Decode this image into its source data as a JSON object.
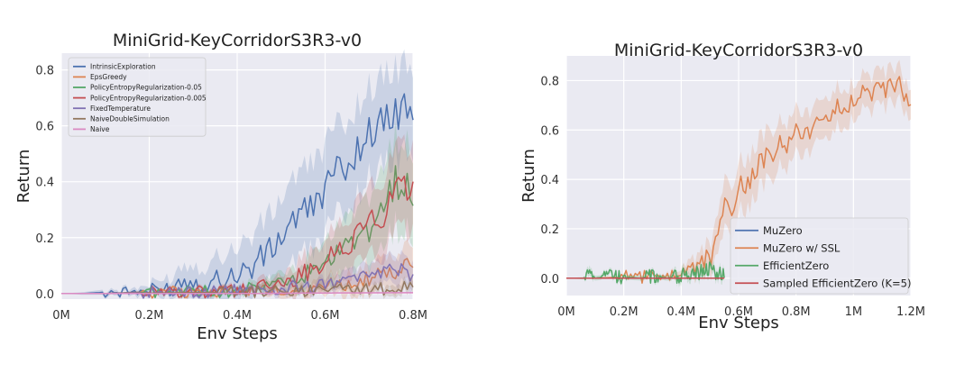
{
  "chart_data": [
    {
      "type": "line",
      "title": "MiniGrid-KeyCorridorS3R3-v0",
      "xlabel": "Env Steps",
      "ylabel": "Return",
      "xlim": [
        0,
        800000
      ],
      "ylim": [
        -0.02,
        0.86
      ],
      "xticks": [
        0,
        200000,
        400000,
        600000,
        800000
      ],
      "xtick_labels": [
        "0M",
        "0.2M",
        "0.4M",
        "0.6M",
        "0.8M"
      ],
      "yticks": [
        0.0,
        0.2,
        0.4,
        0.6,
        0.8
      ],
      "ytick_labels": [
        "0.0",
        "0.2",
        "0.4",
        "0.6",
        "0.8"
      ],
      "grid": true,
      "legend_position": "top-left",
      "series": [
        {
          "name": "IntrinsicExploration",
          "color": "#4c72b0",
          "x": [
            0,
            50000,
            100000,
            150000,
            200000,
            250000,
            280000,
            300000,
            330000,
            350000,
            380000,
            400000,
            430000,
            450000,
            480000,
            500000,
            520000,
            550000,
            580000,
            600000,
            620000,
            650000,
            680000,
            700000,
            720000,
            740000,
            760000,
            780000,
            800000
          ],
          "y": [
            0,
            0,
            0.005,
            0.005,
            0.01,
            0.02,
            0.05,
            0.04,
            0.03,
            0.05,
            0.06,
            0.07,
            0.09,
            0.12,
            0.16,
            0.2,
            0.26,
            0.28,
            0.33,
            0.38,
            0.42,
            0.47,
            0.52,
            0.58,
            0.6,
            0.62,
            0.64,
            0.66,
            0.67
          ],
          "band": [
            0,
            0.005,
            0.01,
            0.01,
            0.02,
            0.04,
            0.06,
            0.06,
            0.07,
            0.08,
            0.09,
            0.1,
            0.11,
            0.12,
            0.13,
            0.14,
            0.15,
            0.15,
            0.16,
            0.16,
            0.16,
            0.16,
            0.16,
            0.16,
            0.16,
            0.16,
            0.16,
            0.16,
            0.15
          ]
        },
        {
          "name": "EpsGreedy",
          "color": "#dd8452",
          "x": [
            0,
            100000,
            200000,
            300000,
            400000,
            500000,
            550000,
            600000,
            650000,
            700000,
            750000,
            800000
          ],
          "y": [
            0,
            0,
            0.005,
            0.005,
            0.01,
            0.01,
            0.02,
            0.03,
            0.04,
            0.05,
            0.07,
            0.1
          ],
          "band": [
            0,
            0.003,
            0.005,
            0.008,
            0.01,
            0.015,
            0.02,
            0.03,
            0.04,
            0.05,
            0.06,
            0.07
          ]
        },
        {
          "name": "PolicyEntropyRegularization-0.05",
          "color": "#55a868",
          "x": [
            0,
            100000,
            200000,
            300000,
            400000,
            450000,
            500000,
            550000,
            600000,
            650000,
            700000,
            730000,
            760000,
            780000,
            800000
          ],
          "y": [
            0,
            0,
            0.005,
            0.005,
            0.01,
            0.02,
            0.04,
            0.06,
            0.1,
            0.16,
            0.22,
            0.3,
            0.4,
            0.38,
            0.36
          ],
          "band": [
            0,
            0.002,
            0.005,
            0.008,
            0.01,
            0.02,
            0.03,
            0.05,
            0.08,
            0.1,
            0.12,
            0.14,
            0.16,
            0.16,
            0.15
          ]
        },
        {
          "name": "PolicyEntropyRegularization-0.005",
          "color": "#c44e52",
          "x": [
            0,
            100000,
            200000,
            300000,
            400000,
            450000,
            500000,
            550000,
            600000,
            650000,
            700000,
            740000,
            770000,
            800000
          ],
          "y": [
            0,
            0,
            0.005,
            0.005,
            0.01,
            0.02,
            0.04,
            0.07,
            0.12,
            0.18,
            0.24,
            0.3,
            0.37,
            0.35
          ],
          "band": [
            0,
            0.002,
            0.005,
            0.008,
            0.01,
            0.02,
            0.03,
            0.06,
            0.08,
            0.1,
            0.12,
            0.14,
            0.15,
            0.15
          ]
        },
        {
          "name": "FixedTemperature",
          "color": "#8172b3",
          "x": [
            0,
            100000,
            200000,
            300000,
            400000,
            500000,
            600000,
            650000,
            700000,
            750000,
            800000
          ],
          "y": [
            0,
            0,
            0.005,
            0.005,
            0.01,
            0.02,
            0.03,
            0.04,
            0.06,
            0.08,
            0.07
          ],
          "band": [
            0,
            0.002,
            0.004,
            0.006,
            0.01,
            0.015,
            0.02,
            0.03,
            0.04,
            0.05,
            0.05
          ]
        },
        {
          "name": "NaiveDoubleSimulation",
          "color": "#937860",
          "x": [
            0,
            100000,
            200000,
            300000,
            400000,
            500000,
            600000,
            700000,
            750000,
            800000
          ],
          "y": [
            0,
            0,
            0.002,
            0.003,
            0.005,
            0.007,
            0.01,
            0.015,
            0.02,
            0.03
          ],
          "band": [
            0,
            0.001,
            0.002,
            0.003,
            0.005,
            0.006,
            0.01,
            0.015,
            0.02,
            0.02
          ]
        },
        {
          "name": "Naive",
          "color": "#da8bc3",
          "x": [
            0,
            200000,
            400000,
            600000,
            800000
          ],
          "y": [
            0,
            0,
            0,
            0.002,
            0.003
          ],
          "band": [
            0,
            0,
            0.002,
            0.003,
            0.004
          ]
        }
      ]
    },
    {
      "type": "line",
      "title": "MiniGrid-KeyCorridorS3R3-v0",
      "xlabel": "Env Steps",
      "ylabel": "Return",
      "xlim": [
        0,
        1200000
      ],
      "ylim": [
        -0.07,
        0.9
      ],
      "xticks": [
        0,
        200000,
        400000,
        600000,
        800000,
        1000000,
        1200000
      ],
      "xtick_labels": [
        "0M",
        "0.2M",
        "0.4M",
        "0.6M",
        "0.8M",
        "1M",
        "1.2M"
      ],
      "yticks": [
        0.0,
        0.2,
        0.4,
        0.6,
        0.8
      ],
      "ytick_labels": [
        "0.0",
        "0.2",
        "0.4",
        "0.6",
        "0.8"
      ],
      "grid": true,
      "legend_position": "bottom-right",
      "series": [
        {
          "name": "MuZero",
          "color": "#4c72b0",
          "x": [
            0,
            100000,
            200000,
            300000,
            400000,
            500000,
            520000
          ],
          "y": [
            0,
            0,
            0,
            0,
            0,
            0,
            0
          ],
          "band": [
            0,
            0,
            0,
            0,
            0,
            0,
            0
          ]
        },
        {
          "name": "MuZero w/ SSL",
          "color": "#dd8452",
          "x": [
            0,
            100000,
            200000,
            300000,
            360000,
            400000,
            450000,
            500000,
            530000,
            550000,
            580000,
            600000,
            650000,
            700000,
            750000,
            800000,
            850000,
            900000,
            950000,
            1000000,
            1050000,
            1100000,
            1150000,
            1200000
          ],
          "y": [
            0,
            0,
            0.005,
            0.005,
            0.01,
            0.02,
            0.05,
            0.08,
            0.15,
            0.28,
            0.3,
            0.35,
            0.42,
            0.5,
            0.55,
            0.58,
            0.6,
            0.63,
            0.7,
            0.72,
            0.75,
            0.77,
            0.78,
            0.73
          ],
          "band": [
            0,
            0.002,
            0.004,
            0.006,
            0.01,
            0.02,
            0.04,
            0.06,
            0.08,
            0.1,
            0.1,
            0.1,
            0.1,
            0.1,
            0.09,
            0.09,
            0.08,
            0.08,
            0.08,
            0.07,
            0.07,
            0.07,
            0.07,
            0.06
          ]
        },
        {
          "name": "EfficientZero",
          "color": "#55a868",
          "x": [
            0,
            60000,
            80000,
            100000,
            130000,
            160000,
            200000,
            260000,
            300000,
            350000,
            400000,
            450000,
            500000,
            530000,
            550000
          ],
          "y": [
            0,
            0,
            0.02,
            0,
            0.005,
            0.01,
            0.005,
            0,
            0.01,
            0,
            0.01,
            0.02,
            0.04,
            0.02,
            0.01
          ],
          "band": [
            0,
            0.005,
            0.02,
            0.01,
            0.01,
            0.01,
            0.01,
            0.01,
            0.01,
            0.01,
            0.02,
            0.02,
            0.02,
            0.02,
            0.02
          ]
        },
        {
          "name": "Sampled EfficientZero (K=5)",
          "color": "#c44e52",
          "x": [
            0,
            100000,
            200000,
            300000,
            400000,
            500000,
            550000
          ],
          "y": [
            0,
            0,
            0,
            0,
            0,
            0,
            0
          ],
          "band": [
            0,
            0,
            0,
            0,
            0,
            0,
            0
          ]
        }
      ]
    }
  ]
}
